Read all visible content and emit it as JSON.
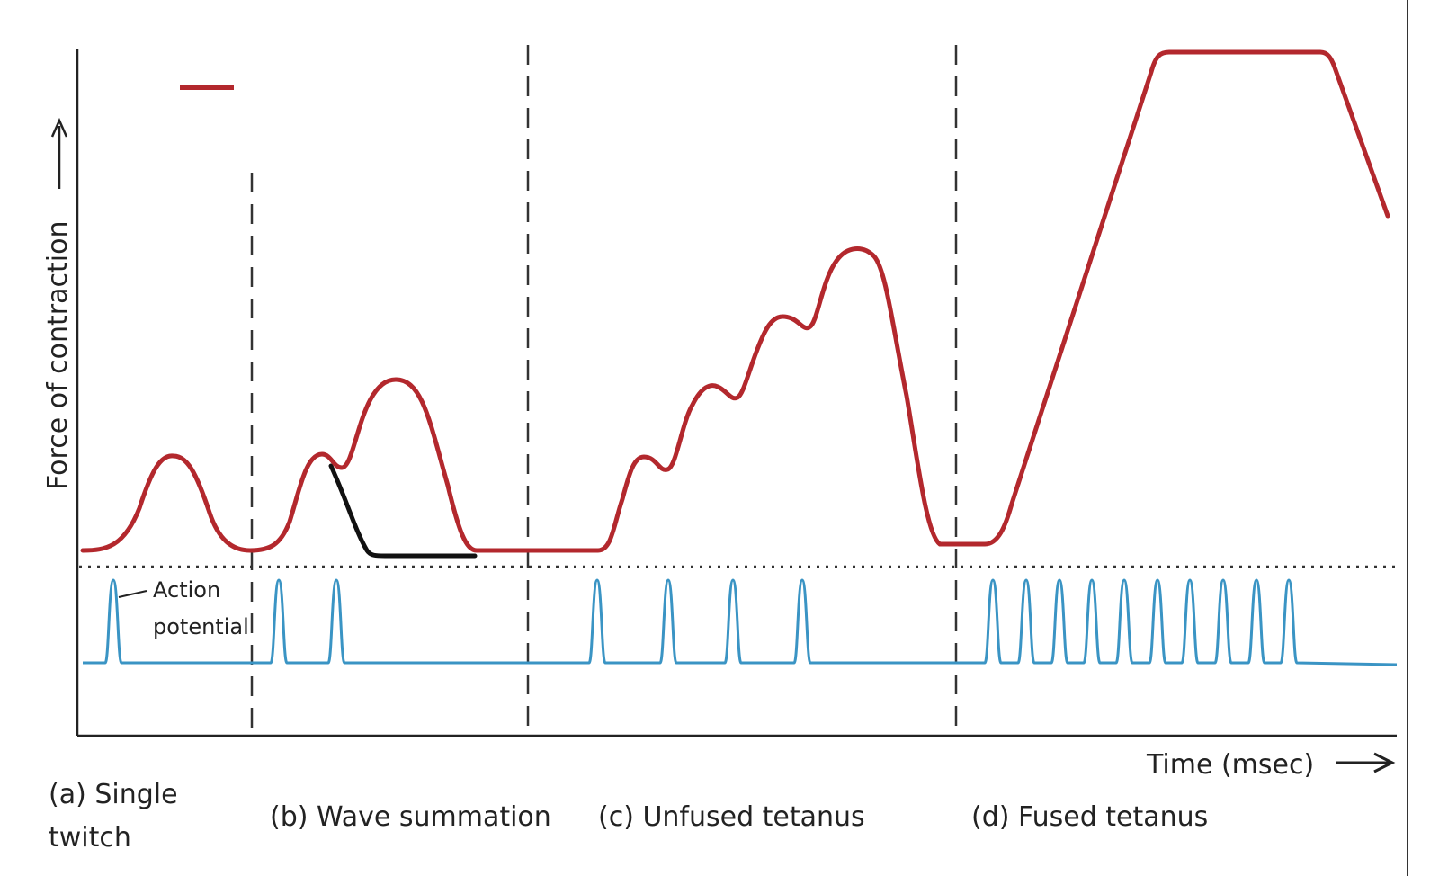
{
  "labels": {
    "y_axis": "Force of contraction",
    "x_axis": "Time (msec)",
    "action_potential_line1": "Action",
    "action_potential_line2": "potential",
    "panel_a_line1": "(a) Single",
    "panel_a_line2": "twitch",
    "panel_b": "(b) Wave summation",
    "panel_c": "(c) Unfused tetanus",
    "panel_d": "(d) Fused tetanus"
  },
  "colors": {
    "force_curve": "#b3282d",
    "relaxation_curve": "#111111",
    "action_potential": "#3a94c4",
    "axes": "#222222",
    "dividers": "#333333"
  },
  "icons": {
    "legend_swatch": "red-dash-icon",
    "y_arrow": "arrow-up-icon",
    "x_arrow": "arrow-right-icon"
  }
}
